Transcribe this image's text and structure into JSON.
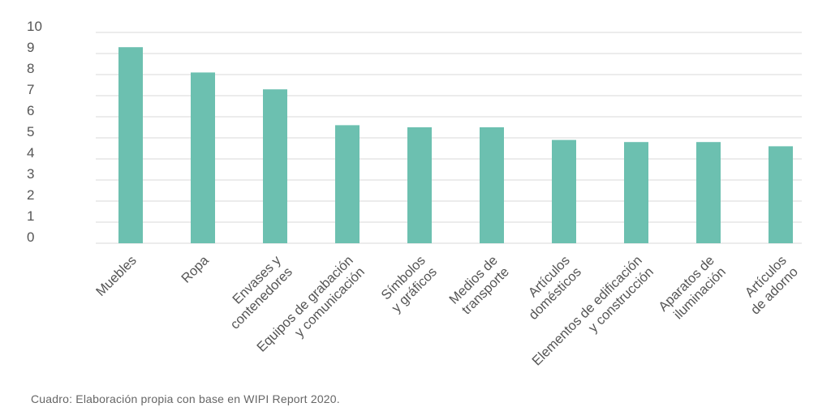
{
  "chart_data": {
    "type": "bar",
    "categories": [
      [
        "Muebles"
      ],
      [
        "Ropa"
      ],
      [
        "Envases y",
        "contenedores"
      ],
      [
        "Equipos de grabación",
        "y comunicación"
      ],
      [
        "Símbolos",
        "y gráficos"
      ],
      [
        "Medios de",
        "transporte"
      ],
      [
        "Artículos",
        "domésticos"
      ],
      [
        "Elementos de edificación",
        "y construcción"
      ],
      [
        "Aparatos de",
        "iluminación"
      ],
      [
        "Artículos",
        "de adorno"
      ]
    ],
    "values": [
      9.3,
      8.1,
      7.3,
      5.6,
      5.5,
      5.5,
      4.9,
      4.8,
      4.8,
      4.6
    ],
    "ylim": [
      0,
      10
    ],
    "yticks": [
      0,
      1,
      2,
      3,
      4,
      5,
      6,
      7,
      8,
      9,
      10
    ],
    "bar_color": "#6cc0b0",
    "grid": true
  },
  "caption": "Cuadro: Elaboración propia con base en WIPI Report 2020."
}
